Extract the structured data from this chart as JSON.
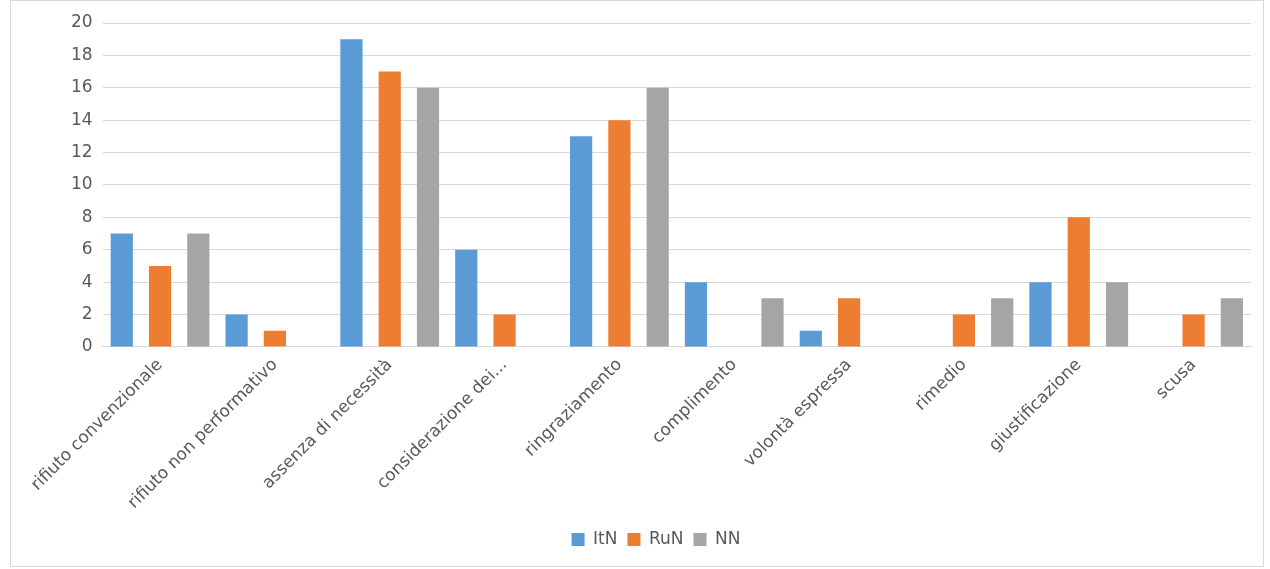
{
  "chart_data": {
    "type": "bar",
    "categories": [
      "rifiuto convenzionale",
      "rifiuto non performativo",
      "assenza di necessità",
      "considerazione dei...",
      "ringraziamento",
      "complimento",
      "volontà espressa",
      "rimedio",
      "giustificazione",
      "scusa"
    ],
    "series": [
      {
        "name": "ItN",
        "color": "#5b9bd5",
        "values": [
          7,
          2,
          19,
          6,
          13,
          4,
          1,
          0,
          4,
          0
        ]
      },
      {
        "name": "RuN",
        "color": "#ed7d31",
        "values": [
          5,
          1,
          17,
          2,
          14,
          0,
          3,
          2,
          8,
          2
        ]
      },
      {
        "name": "NN",
        "color": "#a5a5a5",
        "values": [
          7,
          0,
          16,
          0,
          16,
          3,
          0,
          3,
          4,
          3
        ]
      }
    ],
    "ylim": [
      0,
      20
    ],
    "yticks": [
      0,
      2,
      4,
      6,
      8,
      10,
      12,
      14,
      16,
      18,
      20
    ],
    "grid": "y",
    "legend": "bottom"
  }
}
